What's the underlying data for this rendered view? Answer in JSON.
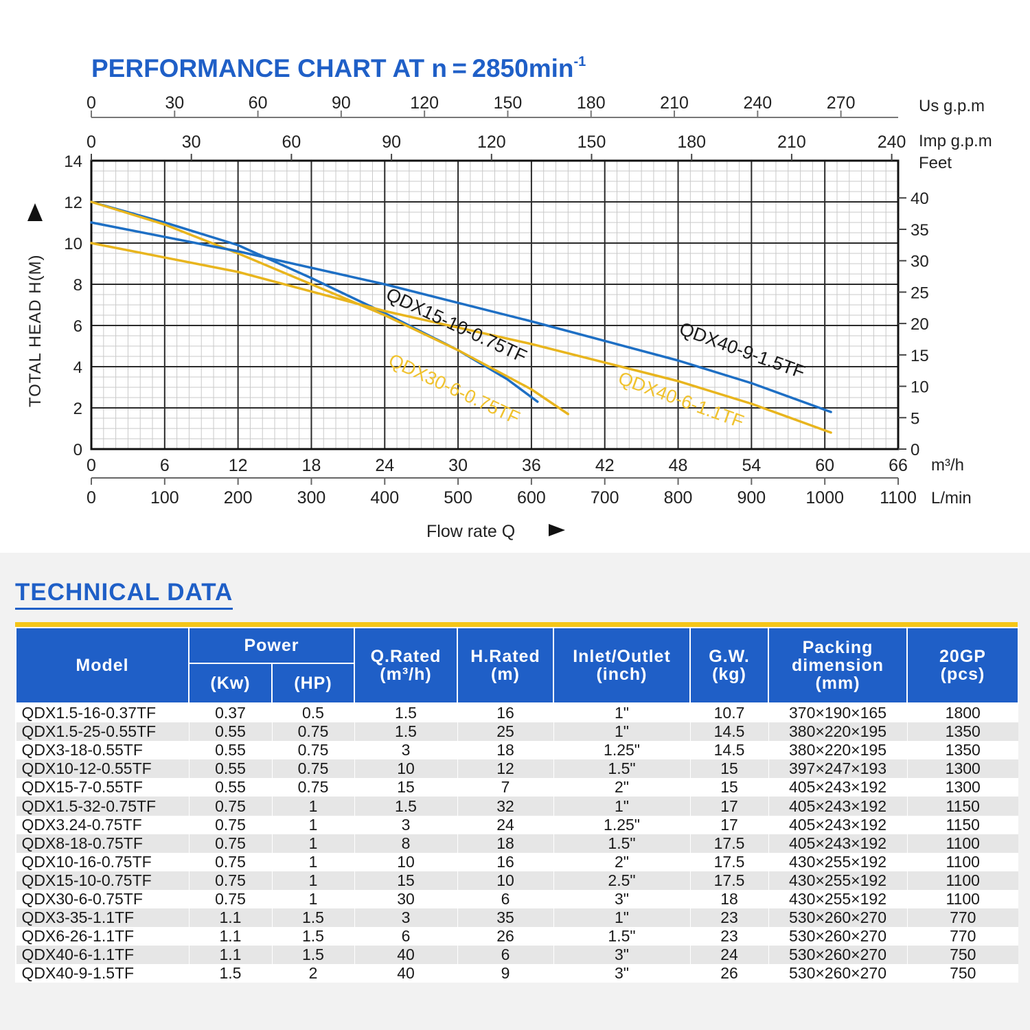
{
  "chart_data": {
    "type": "line",
    "title": "PERFORMANCE CHART AT n = 2850min",
    "title_superscript": "-1",
    "xlabel": "Flow rate Q",
    "ylabel": "TOTAL HEAD H(M)",
    "x_unit_main": "m³/h",
    "xlim": [
      0,
      66
    ],
    "ylim": [
      0,
      14
    ],
    "x_ticks": [
      "0",
      "6",
      "12",
      "18",
      "24",
      "30",
      "36",
      "42",
      "48",
      "54",
      "60",
      "66"
    ],
    "y_ticks": [
      "0",
      "2",
      "4",
      "6",
      "8",
      "10",
      "12",
      "14"
    ],
    "axis_lmin": {
      "unit": "L/min",
      "ticks": [
        "0",
        "100",
        "200",
        "300",
        "400",
        "500",
        "600",
        "700",
        "800",
        "900",
        "1000",
        "1100"
      ]
    },
    "axis_usgpm": {
      "unit": "Us g.p.m",
      "ticks": [
        "0",
        "30",
        "60",
        "90",
        "120",
        "150",
        "180",
        "210",
        "240",
        "270"
      ]
    },
    "axis_impgpm": {
      "unit": "Imp g.p.m",
      "ticks": [
        "0",
        "30",
        "60",
        "90",
        "120",
        "150",
        "180",
        "210",
        "240"
      ]
    },
    "axis_feet": {
      "unit": "Feet",
      "ticks": [
        "0",
        "5",
        "10",
        "15",
        "20",
        "25",
        "30",
        "35",
        "40"
      ]
    },
    "series": [
      {
        "name": "QDX15-10-0.75TF",
        "color": "#1e6fc4",
        "x": [
          0,
          6,
          12,
          18,
          24,
          30,
          34,
          36.5
        ],
        "y": [
          12,
          11,
          9.9,
          8.3,
          6.6,
          4.8,
          3.4,
          2.3
        ]
      },
      {
        "name": "QDX30-6-0.75TF",
        "color": "#e8b51e",
        "x": [
          0,
          6,
          12,
          18,
          24,
          30,
          36,
          39
        ],
        "y": [
          12,
          10.9,
          9.5,
          8,
          6.5,
          4.8,
          2.9,
          1.7
        ]
      },
      {
        "name": "QDX40-9-1.5TF",
        "color": "#1e6fc4",
        "x": [
          0,
          12,
          24,
          36,
          48,
          54,
          60.5
        ],
        "y": [
          11,
          9.6,
          8,
          6.2,
          4.3,
          3.2,
          1.8
        ]
      },
      {
        "name": "QDX40-6-1.1TF",
        "color": "#e8b51e",
        "x": [
          0,
          12,
          24,
          36,
          48,
          54,
          60.5
        ],
        "y": [
          10,
          8.6,
          6.7,
          5.1,
          3.3,
          2.2,
          0.8
        ]
      }
    ],
    "annotations": [
      {
        "text": "QDX15-10-0.75TF",
        "series": "QDX15-10-0.75TF",
        "x": 24,
        "y": 7.3,
        "angle": 25
      },
      {
        "text": "QDX30-6-0.75TF",
        "series": "QDX30-6-0.75TF",
        "x": 24.2,
        "y": 4.1,
        "angle": 25
      },
      {
        "text": "QDX40-9-1.5TF",
        "series": "QDX40-9-1.5TF",
        "x": 48,
        "y": 5.6,
        "angle": 20
      },
      {
        "text": "QDX40-6-1.1TF",
        "series": "QDX40-6-1.1TF",
        "x": 43,
        "y": 3.2,
        "angle": 20
      }
    ],
    "grid": true
  },
  "tech": {
    "title": "TECHNICAL DATA",
    "header": {
      "model": "Model",
      "power": "Power",
      "kw": "(Kw)",
      "hp": "(HP)",
      "q_rated_1": "Q.Rated",
      "q_rated_2": "(m³/h)",
      "h_rated_1": "H.Rated",
      "h_rated_2": "(m)",
      "inlet_1": "Inlet/Outlet",
      "inlet_2": "(inch)",
      "gw_1": "G.W.",
      "gw_2": "(kg)",
      "pack_1": "Packing",
      "pack_2": "dimension",
      "pack_3": "(mm)",
      "gp_1": "20GP",
      "gp_2": "(pcs)"
    },
    "rows": [
      [
        "QDX1.5-16-0.37TF",
        "0.37",
        "0.5",
        "1.5",
        "16",
        "1\"",
        "10.7",
        "370×190×165",
        "1800"
      ],
      [
        "QDX1.5-25-0.55TF",
        "0.55",
        "0.75",
        "1.5",
        "25",
        "1\"",
        "14.5",
        "380×220×195",
        "1350"
      ],
      [
        "QDX3-18-0.55TF",
        "0.55",
        "0.75",
        "3",
        "18",
        "1.25\"",
        "14.5",
        "380×220×195",
        "1350"
      ],
      [
        "QDX10-12-0.55TF",
        "0.55",
        "0.75",
        "10",
        "12",
        "1.5\"",
        "15",
        "397×247×193",
        "1300"
      ],
      [
        "QDX15-7-0.55TF",
        "0.55",
        "0.75",
        "15",
        "7",
        "2\"",
        "15",
        "405×243×192",
        "1300"
      ],
      [
        "QDX1.5-32-0.75TF",
        "0.75",
        "1",
        "1.5",
        "32",
        "1\"",
        "17",
        "405×243×192",
        "1150"
      ],
      [
        "QDX3.24-0.75TF",
        "0.75",
        "1",
        "3",
        "24",
        "1.25\"",
        "17",
        "405×243×192",
        "1150"
      ],
      [
        "QDX8-18-0.75TF",
        "0.75",
        "1",
        "8",
        "18",
        "1.5\"",
        "17.5",
        "405×243×192",
        "1100"
      ],
      [
        "QDX10-16-0.75TF",
        "0.75",
        "1",
        "10",
        "16",
        "2\"",
        "17.5",
        "430×255×192",
        "1100"
      ],
      [
        "QDX15-10-0.75TF",
        "0.75",
        "1",
        "15",
        "10",
        "2.5\"",
        "17.5",
        "430×255×192",
        "1100"
      ],
      [
        "QDX30-6-0.75TF",
        "0.75",
        "1",
        "30",
        "6",
        "3\"",
        "18",
        "430×255×192",
        "1100"
      ],
      [
        "QDX3-35-1.1TF",
        "1.1",
        "1.5",
        "3",
        "35",
        "1\"",
        "23",
        "530×260×270",
        "770"
      ],
      [
        "QDX6-26-1.1TF",
        "1.1",
        "1.5",
        "6",
        "26",
        "1.5\"",
        "23",
        "530×260×270",
        "770"
      ],
      [
        "QDX40-6-1.1TF",
        "1.1",
        "1.5",
        "40",
        "6",
        "3\"",
        "24",
        "530×260×270",
        "750"
      ],
      [
        "QDX40-9-1.5TF",
        "1.5",
        "2",
        "40",
        "9",
        "3\"",
        "26",
        "530×260×270",
        "750"
      ]
    ]
  },
  "colors": {
    "blue": "#1f5fc7",
    "yellow": "#f5c518",
    "curve_blue": "#1e6fc4",
    "curve_yellow": "#e8b51e"
  }
}
